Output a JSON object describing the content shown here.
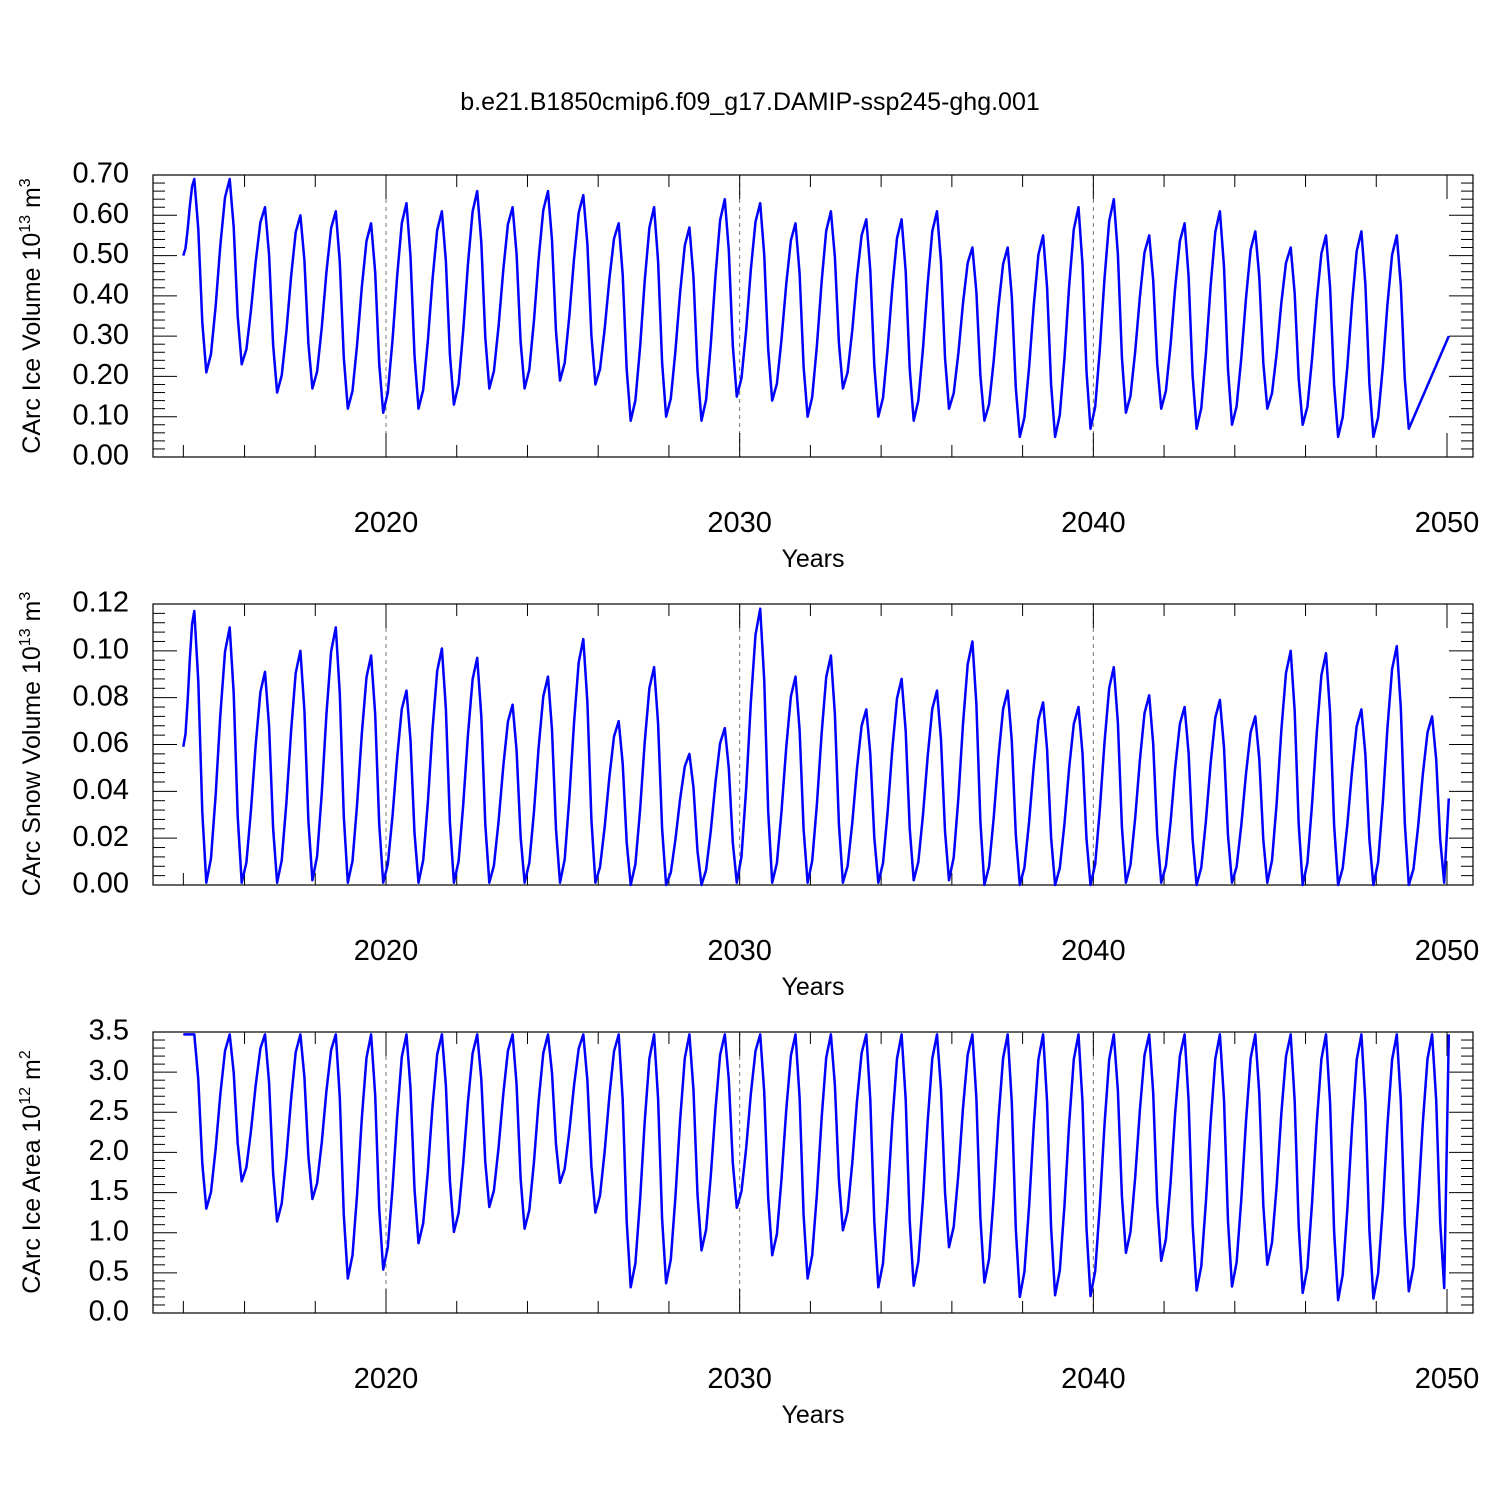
{
  "title": "b.e21.B1850cmip6.f09_g17.DAMIP-ssp245-ghg.001",
  "colors": {
    "series": "#0000ff",
    "axes": "#000000",
    "grid": "#777777"
  },
  "chart_data": [
    {
      "type": "line",
      "ylabel_main": "CArc Ice Volume 10",
      "ylabel_exp": "13",
      "ylabel_unit": " m",
      "ylabel_unit_exp": "3",
      "xlabel": "Years",
      "xlim": [
        2014.25,
        2050.08
      ],
      "ylim": [
        0,
        0.7
      ],
      "yticks": [
        0.0,
        0.1,
        0.2,
        0.3,
        0.4,
        0.5,
        0.6,
        0.7
      ],
      "ytick_labels": [
        "0.00",
        "0.10",
        "0.20",
        "0.30",
        "0.40",
        "0.50",
        "0.60",
        "0.70"
      ],
      "xticks": [
        2020,
        2030,
        2040,
        2050
      ],
      "xtick_labels": [
        "2020",
        "2030",
        "2040",
        "2050"
      ],
      "start_year": 2015,
      "annual_max": [
        0.69,
        0.69,
        0.62,
        0.6,
        0.61,
        0.58,
        0.63,
        0.61,
        0.66,
        0.62,
        0.66,
        0.65,
        0.58,
        0.62,
        0.57,
        0.64,
        0.63,
        0.58,
        0.61,
        0.59,
        0.59,
        0.61,
        0.52,
        0.52,
        0.55,
        0.62,
        0.64,
        0.55,
        0.58,
        0.61,
        0.56,
        0.52,
        0.55,
        0.56,
        0.55
      ],
      "annual_min": [
        0.21,
        0.23,
        0.16,
        0.17,
        0.12,
        0.11,
        0.12,
        0.13,
        0.17,
        0.17,
        0.19,
        0.18,
        0.09,
        0.1,
        0.09,
        0.15,
        0.14,
        0.1,
        0.17,
        0.1,
        0.09,
        0.12,
        0.09,
        0.05,
        0.05,
        0.07,
        0.11,
        0.12,
        0.07,
        0.08,
        0.12,
        0.08,
        0.05,
        0.05,
        0.07
      ],
      "start_value": 0.5,
      "end_value": 0.3
    },
    {
      "type": "line",
      "ylabel_main": "CArc Snow Volume 10",
      "ylabel_exp": "13",
      "ylabel_unit": " m",
      "ylabel_unit_exp": "3",
      "xlabel": "Years",
      "xlim": [
        2014.25,
        2050.08
      ],
      "ylim": [
        0,
        0.12
      ],
      "yticks": [
        0.0,
        0.02,
        0.04,
        0.06,
        0.08,
        0.1,
        0.12
      ],
      "ytick_labels": [
        "0.00",
        "0.02",
        "0.04",
        "0.06",
        "0.08",
        "0.10",
        "0.12"
      ],
      "xticks": [
        2020,
        2030,
        2040,
        2050
      ],
      "xtick_labels": [
        "2020",
        "2030",
        "2040",
        "2050"
      ],
      "start_year": 2015,
      "annual_max": [
        0.117,
        0.11,
        0.091,
        0.1,
        0.11,
        0.098,
        0.083,
        0.101,
        0.097,
        0.077,
        0.089,
        0.105,
        0.07,
        0.093,
        0.056,
        0.067,
        0.118,
        0.089,
        0.098,
        0.075,
        0.088,
        0.083,
        0.104,
        0.083,
        0.078,
        0.076,
        0.093,
        0.081,
        0.076,
        0.079,
        0.072,
        0.1,
        0.099,
        0.075,
        0.102,
        0.072
      ],
      "annual_min": [
        0.001,
        0.001,
        0.001,
        0.002,
        0.001,
        0.001,
        0.001,
        0.001,
        0.001,
        0.001,
        0.001,
        0.001,
        0.0,
        0.0,
        0.0,
        0.001,
        0.001,
        0.001,
        0.001,
        0.001,
        0.002,
        0.002,
        0.0,
        0.0,
        0.0,
        0.0,
        0.001,
        0.001,
        0.0,
        0.001,
        0.001,
        0.0,
        0.0,
        0.0,
        0.0,
        0.001
      ],
      "start_value": 0.059,
      "end_value": 0.037
    },
    {
      "type": "line",
      "ylabel_main": "CArc Ice Area 10",
      "ylabel_exp": "12",
      "ylabel_unit": " m",
      "ylabel_unit_exp": "2",
      "xlabel": "Years",
      "xlim": [
        2014.25,
        2050.08
      ],
      "ylim": [
        0,
        3.5
      ],
      "yticks": [
        0.0,
        0.5,
        1.0,
        1.5,
        2.0,
        2.5,
        3.0,
        3.5
      ],
      "ytick_labels": [
        "0.0",
        "0.5",
        "1.0",
        "1.5",
        "2.0",
        "2.5",
        "3.0",
        "3.5"
      ],
      "xticks": [
        2020,
        2030,
        2040,
        2050
      ],
      "xtick_labels": [
        "2020",
        "2030",
        "2040",
        "2050"
      ],
      "start_year": 2015,
      "annual_max": [
        3.47,
        3.47,
        3.47,
        3.47,
        3.47,
        3.47,
        3.47,
        3.47,
        3.47,
        3.47,
        3.47,
        3.47,
        3.47,
        3.47,
        3.47,
        3.47,
        3.47,
        3.47,
        3.47,
        3.47,
        3.47,
        3.47,
        3.47,
        3.47,
        3.47,
        3.47,
        3.47,
        3.47,
        3.47,
        3.47,
        3.47,
        3.47,
        3.47,
        3.47,
        3.47,
        3.47
      ],
      "annual_min": [
        1.3,
        1.64,
        1.14,
        1.42,
        0.43,
        0.54,
        0.87,
        1.01,
        1.32,
        1.05,
        1.62,
        1.25,
        0.32,
        0.37,
        0.78,
        1.31,
        0.72,
        0.43,
        1.03,
        0.32,
        0.34,
        0.82,
        0.38,
        0.2,
        0.22,
        0.21,
        0.75,
        0.65,
        0.28,
        0.33,
        0.6,
        0.25,
        0.16,
        0.18,
        0.27,
        0.31
      ],
      "start_value": 3.47,
      "end_value": 3.47
    }
  ]
}
